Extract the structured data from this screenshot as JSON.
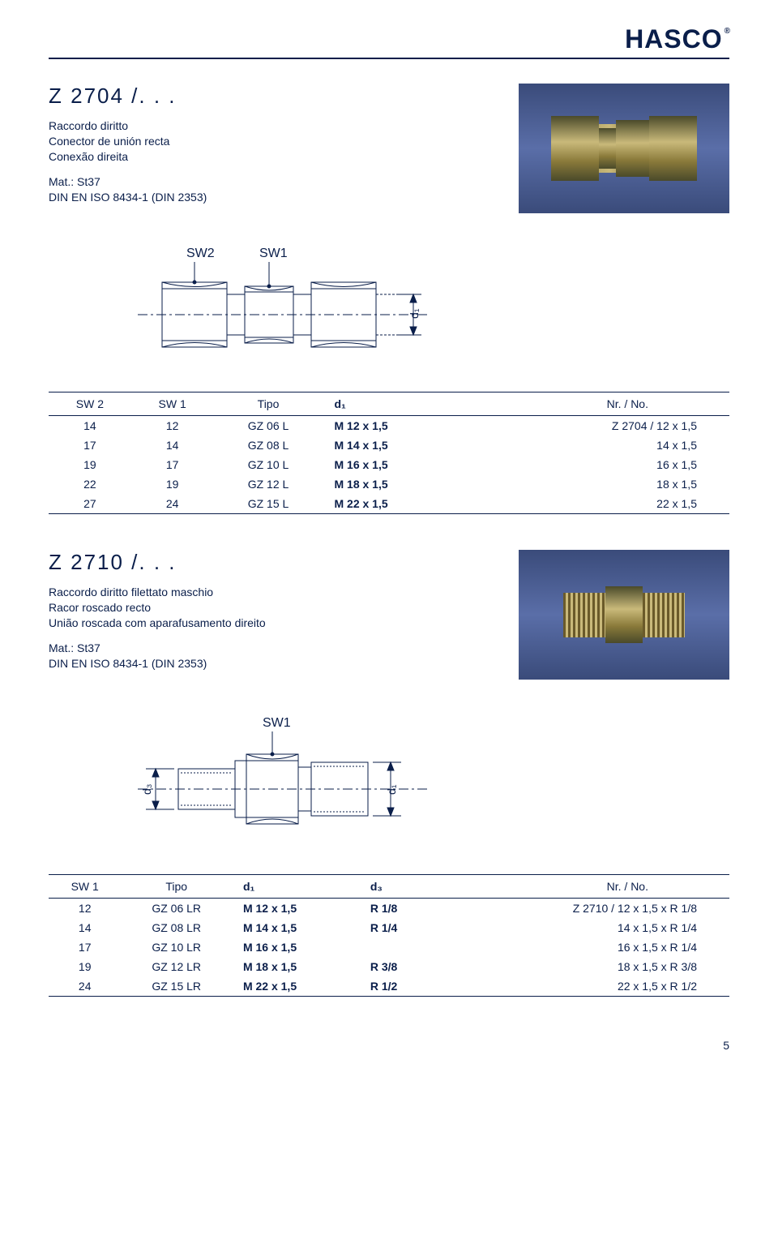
{
  "brand": "HASCO",
  "page_number": "5",
  "sections": [
    {
      "code": "Z 2704 /. . .",
      "descr_lines": [
        "Raccordo diritto",
        "Conector de unión recta",
        "Conexão direita"
      ],
      "mat_lines": [
        "Mat.: St37",
        "DIN EN ISO 8434-1 (DIN 2353)"
      ],
      "diagram_labels": {
        "sw1": "SW1",
        "sw2": "SW2",
        "d1": "d₁"
      },
      "table": {
        "columns": [
          "SW 2",
          "SW 1",
          "Tipo",
          "d₁",
          "Nr. / No."
        ],
        "rows": [
          [
            "14",
            "12",
            "GZ 06 L",
            "M 12 x 1,5",
            "Z 2704 / 12 x 1,5"
          ],
          [
            "17",
            "14",
            "GZ 08 L",
            "M 14 x 1,5",
            "14 x 1,5"
          ],
          [
            "19",
            "17",
            "GZ 10 L",
            "M 16 x 1,5",
            "16 x 1,5"
          ],
          [
            "22",
            "19",
            "GZ 12 L",
            "M 18 x 1,5",
            "18 x 1,5"
          ],
          [
            "27",
            "24",
            "GZ 15 L",
            "M 22 x 1,5",
            "22 x 1,5"
          ]
        ]
      }
    },
    {
      "code": "Z 2710 /. . .",
      "descr_lines": [
        "Raccordo diritto filettato maschio",
        "Racor roscado recto",
        "União roscada com aparafusamento direito"
      ],
      "mat_lines": [
        "Mat.: St37",
        "DIN EN ISO 8434-1 (DIN 2353)"
      ],
      "diagram_labels": {
        "sw1": "SW1",
        "d1": "d₁",
        "d3": "d₃"
      },
      "table": {
        "columns": [
          "SW 1",
          "Tipo",
          "d₁",
          "d₃",
          "Nr. / No."
        ],
        "rows": [
          [
            "12",
            "GZ 06 LR",
            "M 12 x 1,5",
            "R 1/8",
            "Z 2710 / 12 x 1,5 x R 1/8"
          ],
          [
            "14",
            "GZ 08 LR",
            "M 14 x 1,5",
            "R 1/4",
            "14 x 1,5 x R 1/4"
          ],
          [
            "17",
            "GZ 10 LR",
            "M 16 x 1,5",
            "",
            "16 x 1,5 x R 1/4"
          ],
          [
            "19",
            "GZ 12 LR",
            "M 18 x 1,5",
            "R 3/8",
            "18 x 1,5 x R 3/8"
          ],
          [
            "24",
            "GZ 15 LR",
            "M 22 x 1,5",
            "R 1/2",
            "22 x 1,5 x R 1/2"
          ]
        ]
      }
    }
  ],
  "colors": {
    "brand_blue": "#0a1e4a",
    "photo_bg": "#4a5d92",
    "metal": "#b3a561"
  }
}
